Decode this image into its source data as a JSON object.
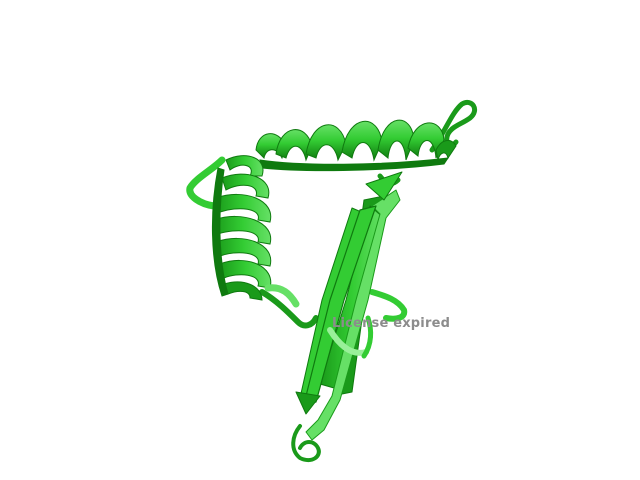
{
  "viewer": {
    "watermark_text": "License expired",
    "background_color": "#ffffff"
  },
  "molecule": {
    "representation": "cartoon",
    "colors": {
      "base": "#33cc33",
      "dark": "#1a9a1a",
      "darker": "#0f7a0f",
      "light": "#66e066",
      "highlight": "#99f099"
    }
  }
}
